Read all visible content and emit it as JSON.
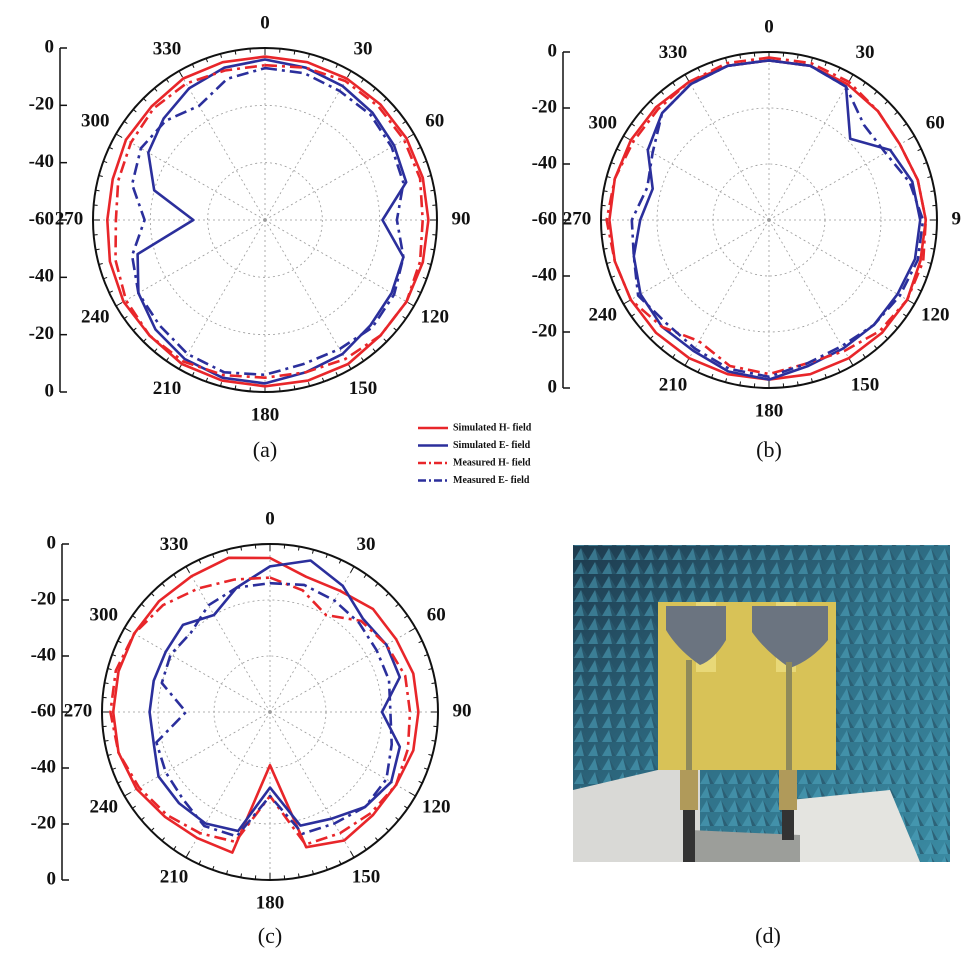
{
  "chart_data": [
    {
      "type": "polar",
      "caption": "(a)",
      "legend": true,
      "rlim": [
        -60,
        0
      ],
      "yticks_upper": [
        0,
        -20,
        -40,
        -60
      ],
      "yticks_lower": [
        -40,
        -20,
        0
      ],
      "thetaticks": [
        0,
        30,
        60,
        90,
        120,
        150,
        180,
        210,
        240,
        270,
        300,
        330
      ],
      "theta": [
        0,
        15,
        30,
        45,
        60,
        75,
        90,
        105,
        120,
        135,
        150,
        165,
        180,
        195,
        210,
        225,
        240,
        255,
        270,
        285,
        300,
        315,
        330,
        345
      ],
      "series": [
        {
          "name": "Simulated H- field",
          "color": "#e8262a",
          "dash": "solid",
          "values": [
            -3,
            -3,
            -3,
            -3,
            -3,
            -3,
            -3,
            -3,
            -3,
            -3,
            -2,
            -2,
            -2,
            -2,
            -2,
            -3,
            -3,
            -4,
            -5,
            -5,
            -4,
            -4,
            -3,
            -3
          ]
        },
        {
          "name": "Simulated E- field",
          "color": "#2b2f9c",
          "dash": "solid",
          "values": [
            -4,
            -5,
            -6,
            -7,
            -8,
            -9,
            -19,
            -10,
            -9,
            -8,
            -6,
            -5,
            -3,
            -3,
            -4,
            -6,
            -9,
            -14,
            -35,
            -20,
            -13,
            -10,
            -7,
            -5
          ]
        },
        {
          "name": "Measured H- field",
          "color": "#e8262a",
          "dash": "dashdot",
          "values": [
            -6,
            -5,
            -4,
            -4,
            -4,
            -4,
            -5,
            -4,
            -3,
            -3,
            -4,
            -5,
            -5,
            -4,
            -3,
            -3,
            -4,
            -6,
            -8,
            -7,
            -6,
            -5,
            -5,
            -6
          ]
        },
        {
          "name": "Measured E- field",
          "color": "#2b2f9c",
          "dash": "dashdot",
          "values": [
            -7,
            -7,
            -8,
            -8,
            -9,
            -10,
            -14,
            -10,
            -8,
            -7,
            -8,
            -8,
            -6,
            -5,
            -6,
            -8,
            -9,
            -12,
            -18,
            -12,
            -10,
            -11,
            -14,
            -9
          ]
        }
      ]
    },
    {
      "type": "polar",
      "caption": "(b)",
      "legend": false,
      "rlim": [
        -60,
        0
      ],
      "yticks_upper": [
        0,
        -20,
        -40,
        -60
      ],
      "yticks_lower": [
        -40,
        -20,
        0
      ],
      "thetaticks": [
        0,
        30,
        60,
        90,
        120,
        150,
        180,
        210,
        240,
        270,
        300,
        330
      ],
      "theta": [
        0,
        15,
        30,
        45,
        60,
        75,
        90,
        105,
        120,
        135,
        150,
        165,
        180,
        195,
        210,
        225,
        240,
        255,
        270,
        285,
        300,
        315,
        330,
        345
      ],
      "series": [
        {
          "name": "Simulated H- field",
          "color": "#e8262a",
          "dash": "solid",
          "values": [
            -3,
            -3,
            -4,
            -5,
            -6,
            -5,
            -4,
            -4,
            -3,
            -3,
            -3,
            -3,
            -3,
            -3,
            -3,
            -3,
            -3,
            -3,
            -3,
            -3,
            -3,
            -3,
            -3,
            -3
          ]
        },
        {
          "name": "Simulated E- field",
          "color": "#2b2f9c",
          "dash": "solid",
          "values": [
            -3,
            -3,
            -5,
            -19,
            -10,
            -7,
            -6,
            -6,
            -7,
            -7,
            -7,
            -6,
            -3,
            -4,
            -6,
            -6,
            -7,
            -10,
            -14,
            -17,
            -10,
            -6,
            -4,
            -3
          ]
        },
        {
          "name": "Measured H- field",
          "color": "#e8262a",
          "dash": "dashdot",
          "values": [
            -2,
            -2,
            -3,
            -5,
            -6,
            -5,
            -4,
            -3,
            -3,
            -4,
            -6,
            -7,
            -5,
            -6,
            -10,
            -6,
            -3,
            -3,
            -2,
            -3,
            -4,
            -4,
            -3,
            -2
          ]
        },
        {
          "name": "Measured E- field",
          "color": "#2b2f9c",
          "dash": "dashdot",
          "values": [
            -3,
            -3,
            -5,
            -12,
            -12,
            -8,
            -5,
            -5,
            -6,
            -7,
            -8,
            -7,
            -4,
            -5,
            -7,
            -8,
            -6,
            -10,
            -11,
            -15,
            -12,
            -6,
            -4,
            -3
          ]
        }
      ]
    },
    {
      "type": "polar",
      "caption": "(c)",
      "legend": false,
      "rlim": [
        -60,
        0
      ],
      "yticks_upper": [
        0,
        -20,
        -40,
        -60
      ],
      "yticks_lower": [
        -40,
        -20,
        0
      ],
      "thetaticks": [
        0,
        30,
        60,
        90,
        120,
        150,
        180,
        210,
        240,
        270,
        300,
        330
      ],
      "theta": [
        0,
        15,
        30,
        45,
        60,
        75,
        90,
        105,
        120,
        135,
        150,
        165,
        180,
        195,
        210,
        225,
        240,
        255,
        270,
        285,
        300,
        315,
        330,
        345
      ],
      "series": [
        {
          "name": "Simulated H- field",
          "color": "#e8262a",
          "dash": "solid",
          "values": [
            -5,
            -10,
            -10,
            -8,
            -8,
            -7,
            -7,
            -7,
            -8,
            -8,
            -7,
            -10,
            -41,
            -8,
            -8,
            -7,
            -5,
            -4,
            -4,
            -4,
            -4,
            -4,
            -4,
            -3
          ]
        },
        {
          "name": "Simulated E- field",
          "color": "#2b2f9c",
          "dash": "solid",
          "values": [
            -8,
            -4,
            -8,
            -13,
            -12,
            -12,
            -20,
            -12,
            -10,
            -12,
            -16,
            -18,
            -33,
            -16,
            -14,
            -14,
            -14,
            -17,
            -17,
            -17,
            -17,
            -16,
            -20,
            -14
          ]
        },
        {
          "name": "Measured H- field",
          "color": "#e8262a",
          "dash": "dashdot",
          "values": [
            -12,
            -15,
            -20,
            -14,
            -12,
            -10,
            -10,
            -9,
            -8,
            -9,
            -10,
            -11,
            -30,
            -12,
            -10,
            -8,
            -6,
            -4,
            -3,
            -3,
            -4,
            -6,
            -9,
            -11
          ]
        },
        {
          "name": "Measured E- field",
          "color": "#2b2f9c",
          "dash": "dashdot",
          "values": [
            -14,
            -13,
            -14,
            -15,
            -16,
            -16,
            -17,
            -15,
            -12,
            -12,
            -14,
            -15,
            -30,
            -14,
            -13,
            -16,
            -17,
            -18,
            -30,
            -20,
            -19,
            -20,
            -16,
            -14
          ]
        }
      ]
    }
  ],
  "photo": {
    "caption": "(d)"
  }
}
